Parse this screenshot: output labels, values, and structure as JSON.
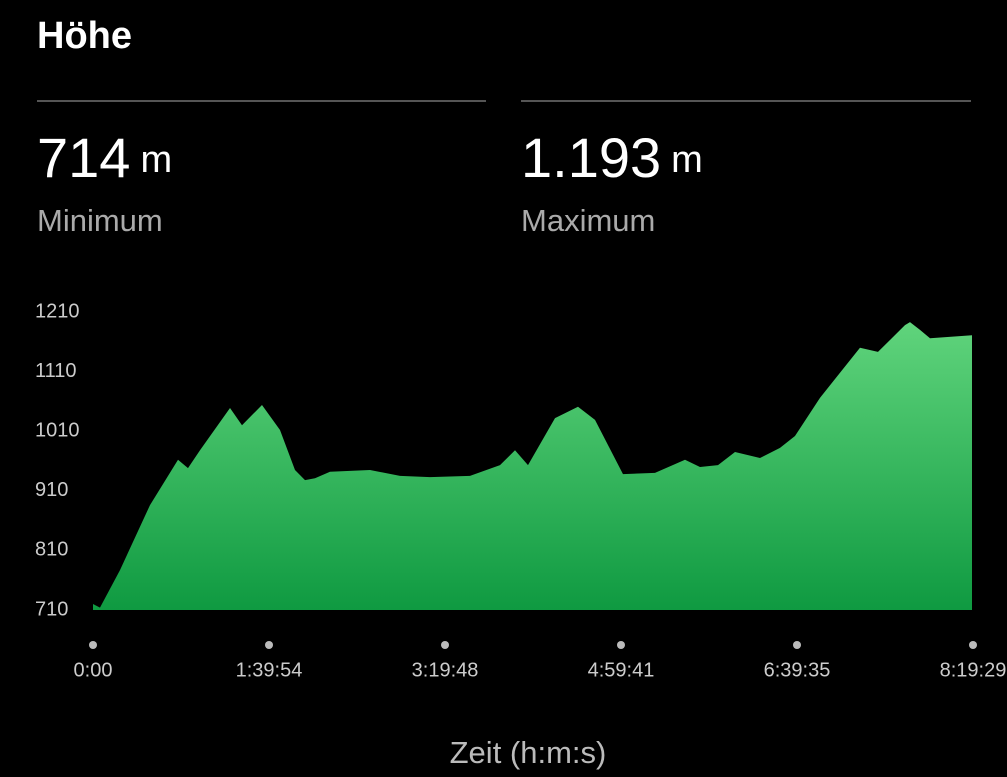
{
  "header": {
    "title": "Höhe"
  },
  "stats": [
    {
      "value": "714",
      "unit": "m",
      "label": "Minimum"
    },
    {
      "value": "1.193",
      "unit": "m",
      "label": "Maximum"
    }
  ],
  "chart_data": {
    "type": "area",
    "x_label": "Zeit (h:m:s)",
    "x": [
      0,
      238,
      919,
      1941,
      2895,
      3235,
      3644,
      4666,
      5074,
      5755,
      6368,
      6879,
      7220,
      7560,
      8071,
      9434,
      10455,
      11477,
      12839,
      13861,
      14372,
      14814,
      15734,
      16517,
      17096,
      18049,
      19139,
      20161,
      20672,
      21285,
      21864,
      22715,
      23396,
      23907,
      24758,
      26120,
      26733,
      27652,
      27823,
      28164,
      28505,
      29935
    ],
    "values": [
      720,
      714,
      777,
      886,
      962,
      948,
      978,
      1049,
      1020,
      1054,
      1012,
      945,
      928,
      931,
      942,
      945,
      935,
      933,
      935,
      953,
      978,
      953,
      1032,
      1051,
      1029,
      938,
      940,
      962,
      950,
      953,
      975,
      965,
      982,
      1002,
      1066,
      1150,
      1143,
      1188,
      1193,
      1180,
      1166,
      1171
    ],
    "color_top": "#60d47c",
    "color_bottom": "#0f9a41",
    "xlim": [
      0,
      29969
    ],
    "xticks": [
      {
        "value": 0,
        "label": "0:00"
      },
      {
        "value": 5994,
        "label": "1:39:54"
      },
      {
        "value": 11988,
        "label": "3:19:48"
      },
      {
        "value": 17981,
        "label": "4:59:41"
      },
      {
        "value": 23975,
        "label": "6:39:35"
      },
      {
        "value": 29969,
        "label": "8:19:29"
      }
    ],
    "ylim": [
      710,
      1210
    ],
    "yticks": [
      710,
      810,
      910,
      1010,
      1110,
      1210
    ]
  }
}
